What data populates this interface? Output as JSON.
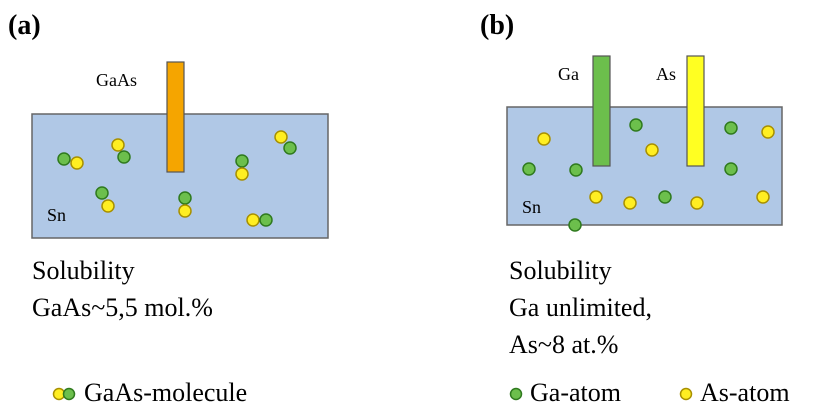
{
  "colors": {
    "liquid_fill": "#b0c8e6",
    "liquid_stroke": "#666666",
    "ga_atom": "#6cbf4c",
    "ga_stroke": "#2f7a1e",
    "as_atom": "#ffee22",
    "as_stroke": "#a89000",
    "gaas_rod": "#f5a500",
    "ga_rod": "#6cbf4c",
    "as_rod": "#ffff22"
  },
  "panel_a": {
    "label": "(a)",
    "rod_label": "GaAs",
    "solvent_label": "Sn",
    "caption_line1": "Solubility",
    "caption_line2": "GaAs~5,5 mol.%",
    "legend_text": "GaAs-molecule"
  },
  "panel_b": {
    "label": "(b)",
    "rod1_label": "Ga",
    "rod2_label": "As",
    "solvent_label": "Sn",
    "caption_line1": "Solubility",
    "caption_line2": "Ga unlimited,",
    "caption_line3": "As~8 at.%",
    "legend_ga": "Ga-atom",
    "legend_as": "As-atom"
  }
}
